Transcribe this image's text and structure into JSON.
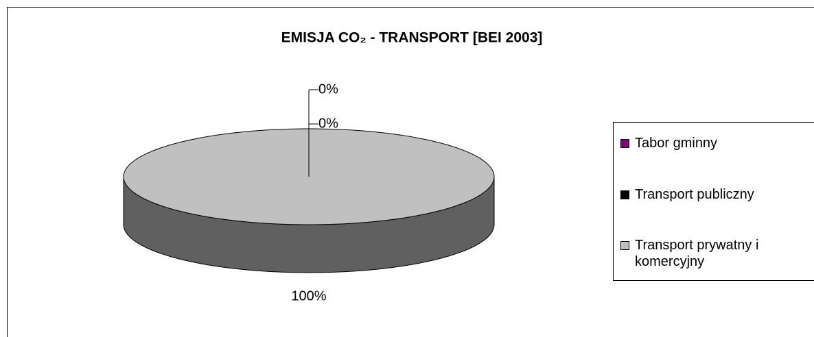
{
  "chart_data": {
    "type": "pie3d",
    "title": "EMISJA CO₂ - TRANSPORT [BEI 2003]",
    "categories": [
      "Tabor gminny",
      "Transport publiczny",
      "Transport prywatny i komercyjny"
    ],
    "values": [
      0,
      0,
      100
    ],
    "value_labels": [
      "0%",
      "0%",
      "100%"
    ],
    "colors": [
      "#800080",
      "#000000",
      "#c0c0c0"
    ],
    "legend": "right"
  }
}
